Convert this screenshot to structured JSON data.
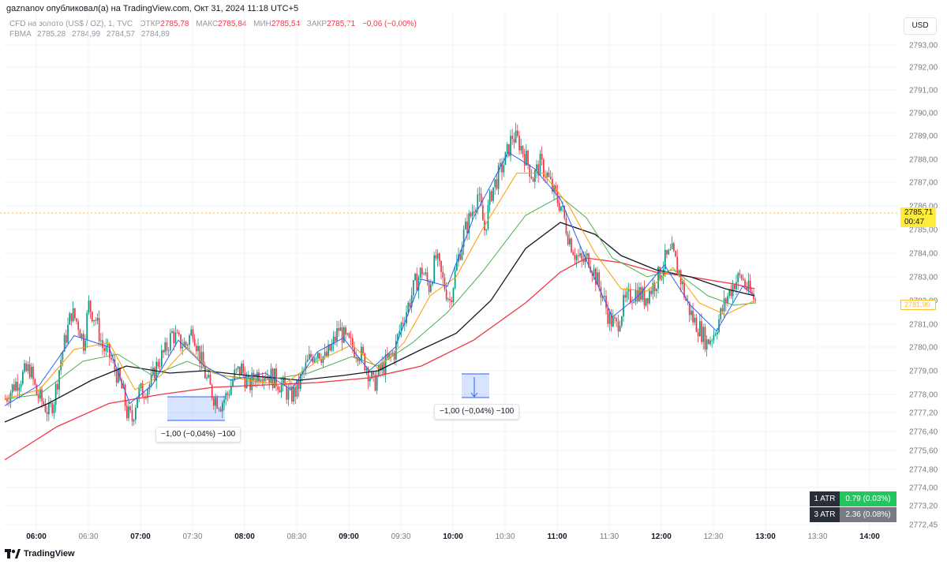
{
  "header": {
    "published_by": "gaznanov опубликовал(а) на TradingView.com, Окт 31, 2024 11:18 UTC+5",
    "symbol": "CFD на золото (US$ / OZ), 1, TVC",
    "open_label": "ОТКР",
    "open": "2785,78",
    "high_label": "МАКС",
    "high": "2785,84",
    "low_label": "МИН",
    "low": "2785,54",
    "close_label": "ЗАКР",
    "close": "2785,71",
    "change": "−0,06 (−0,00%)"
  },
  "indicator": {
    "name": "FBMA",
    "values": [
      "2785,28",
      "2784,99",
      "2784,57",
      "2784,89"
    ],
    "colors": [
      "#2962ff",
      "#ff9800",
      "#131722",
      "#f23645"
    ]
  },
  "currency_button": "USD",
  "price_tag": {
    "price": "2785,71",
    "countdown": "00:47",
    "color": "#ffeb3b"
  },
  "price_tag2": "2781,90",
  "trades": [
    {
      "label": "−1,00 (−0,04%) −100"
    },
    {
      "label": "−1,00 (−0,04%) −100"
    }
  ],
  "atr": [
    {
      "label": "1 ATR",
      "value": "0.79 (0.03%)",
      "color": "#089981"
    },
    {
      "label": "3 ATR",
      "value": "2.36 (0.08%)",
      "color": "#787b86"
    }
  ],
  "logo_text": "TradingView",
  "chart_data": {
    "type": "candlestick",
    "y_axis_ticks": [
      "2793,00",
      "2792,00",
      "2791,00",
      "2790,00",
      "2789,00",
      "2788,00",
      "2787,00",
      "2786,00",
      "2785,00",
      "2784,00",
      "2783,00",
      "2782,00",
      "2781,00",
      "2780,00",
      "2779,00",
      "2778,00",
      "2777,20",
      "2776,40",
      "2775,60",
      "2774,80",
      "2774,00",
      "2773,20",
      "2772,45"
    ],
    "y_axis_values": [
      2793,
      2792,
      2791,
      2790,
      2789,
      2788,
      2787,
      2786,
      2785,
      2784,
      2783,
      2782,
      2781,
      2780,
      2779,
      2778,
      2777.2,
      2776.4,
      2775.6,
      2774.8,
      2774,
      2773.2,
      2772.45
    ],
    "x_axis_ticks": [
      "06:00",
      "06:30",
      "07:00",
      "07:30",
      "08:00",
      "08:30",
      "09:00",
      "09:30",
      "10:00",
      "10:30",
      "11:00",
      "11:30",
      "12:00",
      "12:30",
      "13:00",
      "13:30",
      "14:00"
    ],
    "x_axis_bold": [
      true,
      false,
      true,
      false,
      true,
      false,
      true,
      false,
      true,
      false,
      true,
      false,
      true,
      false,
      true,
      false,
      true
    ],
    "y_range": [
      2772.45,
      2793.6
    ],
    "time_range_minutes": [
      0,
      485
    ],
    "close_path": [
      [
        0,
        2777.8
      ],
      [
        5,
        2778.4
      ],
      [
        10,
        2778.8
      ],
      [
        14,
        2779.1
      ],
      [
        18,
        2778.0
      ],
      [
        22,
        2777.6
      ],
      [
        25,
        2777.2
      ],
      [
        28,
        2777.8
      ],
      [
        32,
        2779.5
      ],
      [
        35,
        2780.5
      ],
      [
        38,
        2781.5
      ],
      [
        42,
        2781.0
      ],
      [
        45,
        2780.2
      ],
      [
        48,
        2781.8
      ],
      [
        52,
        2781.2
      ],
      [
        56,
        2780.0
      ],
      [
        60,
        2779.6
      ],
      [
        64,
        2778.9
      ],
      [
        68,
        2778.0
      ],
      [
        70,
        2777.2
      ],
      [
        73,
        2776.9
      ],
      [
        76,
        2778.0
      ],
      [
        80,
        2778.2
      ],
      [
        84,
        2778.5
      ],
      [
        88,
        2779.4
      ],
      [
        92,
        2779.8
      ],
      [
        96,
        2780.6
      ],
      [
        100,
        2780.2
      ],
      [
        104,
        2780.1
      ],
      [
        108,
        2780.8
      ],
      [
        112,
        2779.6
      ],
      [
        116,
        2778.6
      ],
      [
        120,
        2777.9
      ],
      [
        124,
        2777.6
      ],
      [
        128,
        2778.0
      ],
      [
        132,
        2778.8
      ],
      [
        136,
        2779.1
      ],
      [
        140,
        2778.3
      ],
      [
        144,
        2778.8
      ],
      [
        148,
        2779.0
      ],
      [
        152,
        2778.8
      ],
      [
        156,
        2778.6
      ],
      [
        160,
        2778.3
      ],
      [
        164,
        2777.9
      ],
      [
        168,
        2778.2
      ],
      [
        172,
        2779.0
      ],
      [
        176,
        2779.6
      ],
      [
        180,
        2779.9
      ],
      [
        184,
        2779.5
      ],
      [
        188,
        2780.0
      ],
      [
        192,
        2780.8
      ],
      [
        196,
        2780.3
      ],
      [
        200,
        2780.0
      ],
      [
        204,
        2779.8
      ],
      [
        208,
        2779.2
      ],
      [
        212,
        2778.4
      ],
      [
        216,
        2779.0
      ],
      [
        220,
        2779.4
      ],
      [
        224,
        2779.8
      ],
      [
        228,
        2781.0
      ],
      [
        232,
        2781.8
      ],
      [
        236,
        2782.7
      ],
      [
        240,
        2783.3
      ],
      [
        244,
        2782.6
      ],
      [
        248,
        2783.8
      ],
      [
        252,
        2782.8
      ],
      [
        256,
        2782.0
      ],
      [
        260,
        2783.5
      ],
      [
        264,
        2784.8
      ],
      [
        268,
        2785.6
      ],
      [
        272,
        2786.5
      ],
      [
        276,
        2785.0
      ],
      [
        280,
        2786.6
      ],
      [
        284,
        2787.3
      ],
      [
        288,
        2788.0
      ],
      [
        292,
        2789.0
      ],
      [
        296,
        2788.7
      ],
      [
        300,
        2788.0
      ],
      [
        304,
        2787.2
      ],
      [
        308,
        2787.8
      ],
      [
        312,
        2787.3
      ],
      [
        316,
        2786.5
      ],
      [
        320,
        2786.0
      ],
      [
        324,
        2784.8
      ],
      [
        328,
        2784.0
      ],
      [
        332,
        2783.6
      ],
      [
        336,
        2783.8
      ],
      [
        340,
        2783.0
      ],
      [
        344,
        2782.2
      ],
      [
        348,
        2781.2
      ],
      [
        352,
        2780.9
      ],
      [
        356,
        2781.8
      ],
      [
        360,
        2782.2
      ],
      [
        364,
        2782.4
      ],
      [
        368,
        2782.1
      ],
      [
        372,
        2782.5
      ],
      [
        376,
        2783.0
      ],
      [
        380,
        2783.7
      ],
      [
        384,
        2784.0
      ],
      [
        388,
        2783.2
      ],
      [
        392,
        2782.0
      ],
      [
        396,
        2781.2
      ],
      [
        400,
        2780.8
      ],
      [
        404,
        2780.2
      ],
      [
        408,
        2780.6
      ],
      [
        412,
        2781.4
      ],
      [
        416,
        2782.2
      ],
      [
        420,
        2782.8
      ],
      [
        424,
        2783.0
      ],
      [
        428,
        2782.4
      ],
      [
        432,
        2782.0
      ]
    ],
    "series": [
      {
        "name": "FBMA 1",
        "color": "#2962ff",
        "value": "2785,28"
      },
      {
        "name": "FBMA 2",
        "color": "#ff9800",
        "value": "2784,99"
      },
      {
        "name": "FBMA 3",
        "color": "#131722",
        "value": "2784,57"
      },
      {
        "name": "FBMA 4",
        "color": "#f23645",
        "value": "2784,89"
      }
    ],
    "ma_paths": {
      "ma_blue": [
        [
          0,
          2777.5
        ],
        [
          20,
          2778.4
        ],
        [
          40,
          2780.5
        ],
        [
          60,
          2780.0
        ],
        [
          72,
          2777.6
        ],
        [
          85,
          2778.4
        ],
        [
          100,
          2780.3
        ],
        [
          115,
          2779.2
        ],
        [
          130,
          2778.6
        ],
        [
          150,
          2778.9
        ],
        [
          165,
          2778.2
        ],
        [
          180,
          2779.8
        ],
        [
          195,
          2780.4
        ],
        [
          210,
          2779.0
        ],
        [
          225,
          2780.0
        ],
        [
          240,
          2782.9
        ],
        [
          255,
          2782.6
        ],
        [
          270,
          2785.5
        ],
        [
          290,
          2788.3
        ],
        [
          305,
          2787.6
        ],
        [
          320,
          2786.3
        ],
        [
          335,
          2783.7
        ],
        [
          350,
          2781.3
        ],
        [
          365,
          2782.2
        ],
        [
          380,
          2783.5
        ],
        [
          395,
          2781.8
        ],
        [
          410,
          2780.7
        ],
        [
          425,
          2782.6
        ],
        [
          432,
          2782.2
        ]
      ],
      "ma_orange": [
        [
          0,
          2777.8
        ],
        [
          20,
          2778.2
        ],
        [
          40,
          2779.9
        ],
        [
          60,
          2780.2
        ],
        [
          75,
          2778.2
        ],
        [
          90,
          2778.8
        ],
        [
          105,
          2780.0
        ],
        [
          120,
          2778.9
        ],
        [
          140,
          2778.6
        ],
        [
          160,
          2778.4
        ],
        [
          180,
          2779.4
        ],
        [
          200,
          2780.1
        ],
        [
          215,
          2779.1
        ],
        [
          230,
          2780.2
        ],
        [
          245,
          2782.2
        ],
        [
          260,
          2783.0
        ],
        [
          275,
          2785.0
        ],
        [
          295,
          2787.4
        ],
        [
          310,
          2787.4
        ],
        [
          325,
          2786.0
        ],
        [
          340,
          2784.0
        ],
        [
          355,
          2782.5
        ],
        [
          370,
          2782.4
        ],
        [
          385,
          2783.4
        ],
        [
          400,
          2781.9
        ],
        [
          415,
          2781.4
        ],
        [
          432,
          2782.0
        ]
      ],
      "ma_green": [
        [
          0,
          2777.8
        ],
        [
          20,
          2778.0
        ],
        [
          45,
          2779.4
        ],
        [
          65,
          2779.7
        ],
        [
          85,
          2778.8
        ],
        [
          105,
          2779.4
        ],
        [
          125,
          2778.8
        ],
        [
          150,
          2778.6
        ],
        [
          175,
          2778.9
        ],
        [
          200,
          2779.6
        ],
        [
          215,
          2779.2
        ],
        [
          235,
          2780.2
        ],
        [
          255,
          2781.5
        ],
        [
          275,
          2783.2
        ],
        [
          300,
          2785.6
        ],
        [
          320,
          2786.4
        ],
        [
          335,
          2785.5
        ],
        [
          350,
          2783.8
        ],
        [
          370,
          2783.0
        ],
        [
          385,
          2783.3
        ],
        [
          405,
          2782.2
        ],
        [
          420,
          2781.8
        ],
        [
          432,
          2781.9
        ]
      ],
      "ma_black": [
        [
          0,
          2776.8
        ],
        [
          25,
          2777.6
        ],
        [
          50,
          2778.6
        ],
        [
          70,
          2779.2
        ],
        [
          95,
          2778.9
        ],
        [
          115,
          2779.0
        ],
        [
          140,
          2778.8
        ],
        [
          170,
          2778.6
        ],
        [
          195,
          2778.8
        ],
        [
          215,
          2779.0
        ],
        [
          240,
          2779.9
        ],
        [
          260,
          2780.6
        ],
        [
          280,
          2782.0
        ],
        [
          300,
          2784.2
        ],
        [
          320,
          2785.3
        ],
        [
          340,
          2784.8
        ],
        [
          355,
          2783.9
        ],
        [
          375,
          2783.3
        ],
        [
          395,
          2783.0
        ],
        [
          415,
          2782.5
        ],
        [
          432,
          2782.2
        ]
      ],
      "ma_red": [
        [
          0,
          2775.2
        ],
        [
          30,
          2776.6
        ],
        [
          60,
          2777.6
        ],
        [
          90,
          2778.0
        ],
        [
          120,
          2778.3
        ],
        [
          150,
          2778.4
        ],
        [
          180,
          2778.5
        ],
        [
          210,
          2778.7
        ],
        [
          240,
          2779.2
        ],
        [
          270,
          2780.3
        ],
        [
          300,
          2781.9
        ],
        [
          320,
          2783.2
        ],
        [
          335,
          2783.8
        ],
        [
          355,
          2783.6
        ],
        [
          375,
          2783.2
        ],
        [
          395,
          2783.0
        ],
        [
          420,
          2782.7
        ],
        [
          432,
          2782.5
        ]
      ]
    }
  }
}
